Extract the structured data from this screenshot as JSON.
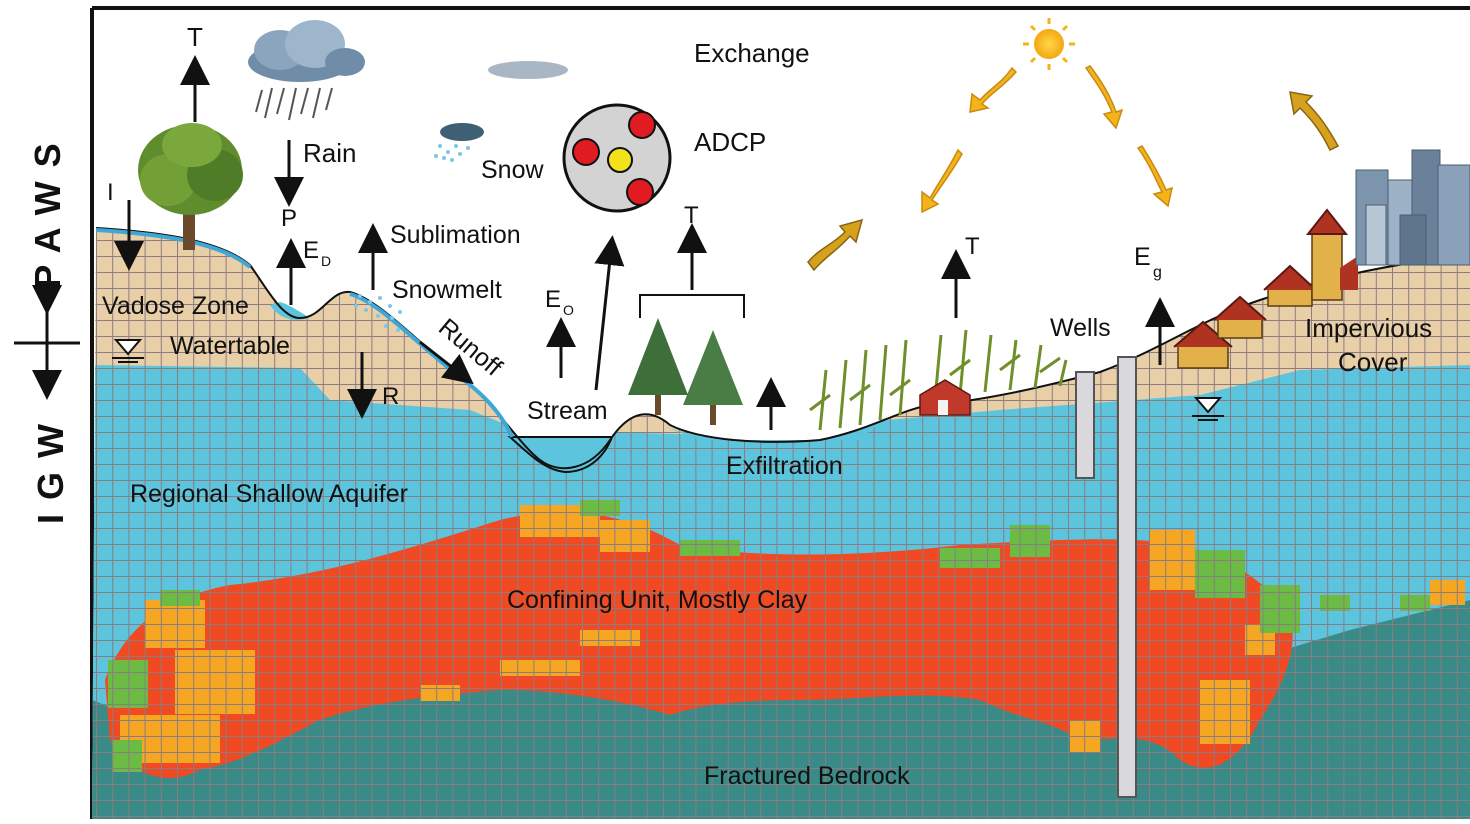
{
  "diagram": {
    "side_labels": {
      "top": "PAWS",
      "bottom": "IGW"
    },
    "labels": {
      "t_tree": "T",
      "rain": "Rain",
      "p": "P",
      "ed": "E",
      "ed_sub": "D",
      "i": "I",
      "vadose_zone": "Vadose Zone",
      "watertable": "Watertable",
      "r": "R",
      "snow": "Snow",
      "sublimation": "Sublimation",
      "snowmelt": "Snowmelt",
      "runoff": "Runoff",
      "eo": "E",
      "eo_sub": "O",
      "stream": "Stream",
      "exchange": "Exchange",
      "adcp": "ADCP",
      "t_forest": "T",
      "t_crops": "T",
      "eg": "E",
      "eg_sub": "g",
      "wells": "Wells",
      "impervious_1": "Impervious",
      "impervious_2": "Cover",
      "exfiltration": "Exfiltration",
      "regional_aquifer": "Regional Shallow Aquifer",
      "confining_unit": "Confining Unit, Mostly Clay",
      "fractured_bedrock": "Fractured Bedrock"
    },
    "colors": {
      "soil": "#e8cfa8",
      "aquifer": "#5cc4dc",
      "clay": "#ef4a23",
      "clay_light": "#f5a623",
      "clay_green": "#6cbb45",
      "bedrock": "#3a8a88",
      "grid": "#8c7c80",
      "arrow_orange": "#f5b31a",
      "arrow_brown": "#d6a11c"
    }
  }
}
